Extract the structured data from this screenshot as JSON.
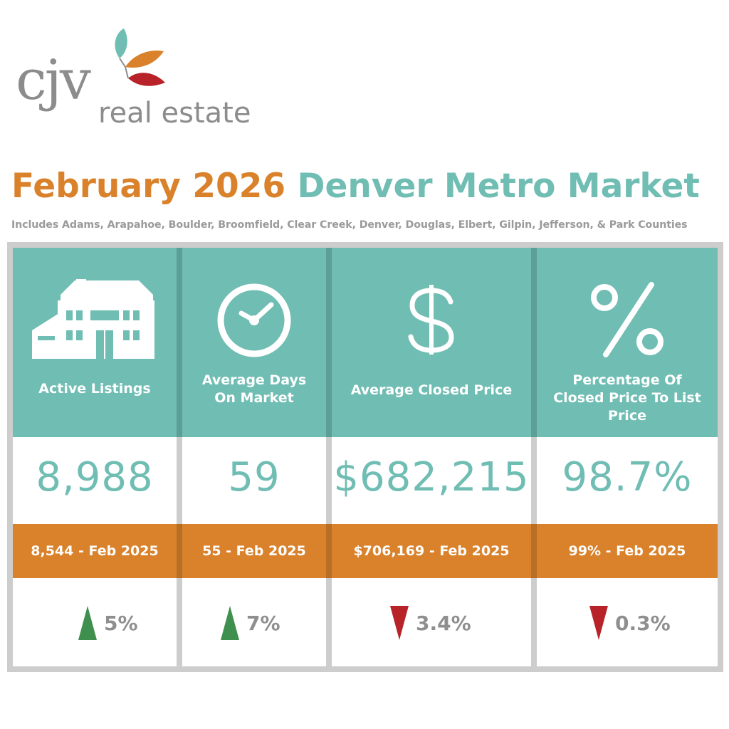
{
  "logo": {
    "brand": "cjv",
    "tagline": "real estate"
  },
  "title": {
    "part1": "February 2026",
    "part2": "Denver Metro Market"
  },
  "subtitle": "Includes Adams, Arapahoe, Boulder, Broomfield, Clear Creek, Denver, Douglas, Elbert, Gilpin, Jefferson, & Park Counties",
  "colors": {
    "teal": "#6fbdb3",
    "orange": "#d9822b",
    "gray": "#8f8f8f",
    "up": "#3f8f4f",
    "down": "#b8232a"
  },
  "metrics": [
    {
      "label": "Active Listings",
      "icon": "house-icon",
      "value": "8,988",
      "prior": "8,544 - Feb 2025",
      "direction": "up",
      "change": "5%"
    },
    {
      "label": "Average Days On Market",
      "icon": "clock-icon",
      "value": "59",
      "prior": "55 - Feb 2025",
      "direction": "up",
      "change": "7%"
    },
    {
      "label": "Average Closed Price",
      "icon": "dollar-icon",
      "value": "$682,215",
      "prior": "$706,169 - Feb 2025",
      "direction": "down",
      "change": "3.4%"
    },
    {
      "label": "Percentage Of Closed Price To List Price",
      "icon": "percent-icon",
      "value": "98.7%",
      "prior": "99% - Feb 2025",
      "direction": "down",
      "change": "0.3%"
    }
  ]
}
